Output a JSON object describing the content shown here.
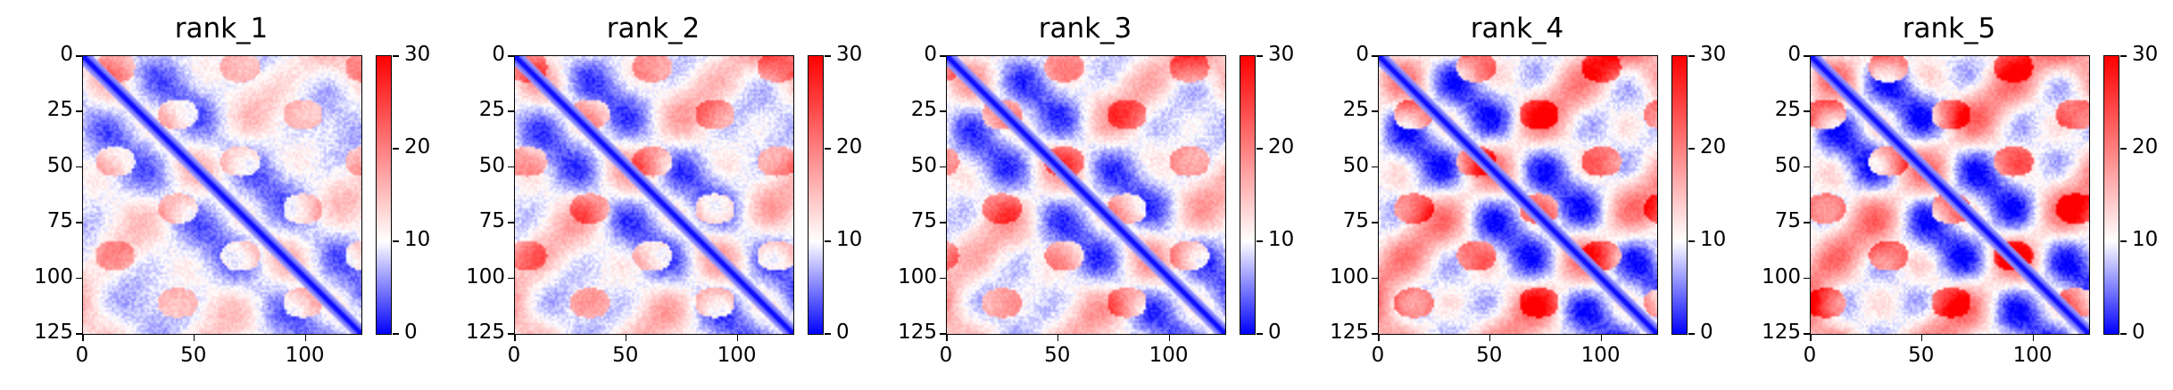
{
  "chart_data": [
    {
      "type": "heatmap",
      "title": "rank_1",
      "xlim": [
        0,
        125
      ],
      "ylim": [
        125,
        0
      ],
      "x_ticks": [
        "0",
        "50",
        "100"
      ],
      "y_ticks": [
        "0",
        "25",
        "50",
        "75",
        "100",
        "125"
      ],
      "colorbar": {
        "min": 0,
        "max": 30,
        "ticks": [
          "0",
          "10",
          "20",
          "30"
        ],
        "colormap": "bwr",
        "center": 10
      },
      "intensity": 0.35
    },
    {
      "type": "heatmap",
      "title": "rank_2",
      "xlim": [
        0,
        125
      ],
      "ylim": [
        125,
        0
      ],
      "x_ticks": [
        "0",
        "50",
        "100"
      ],
      "y_ticks": [
        "0",
        "25",
        "50",
        "75",
        "100",
        "125"
      ],
      "colorbar": {
        "min": 0,
        "max": 30,
        "ticks": [
          "0",
          "10",
          "20",
          "30"
        ],
        "colormap": "bwr",
        "center": 10
      },
      "intensity": 0.5
    },
    {
      "type": "heatmap",
      "title": "rank_3",
      "xlim": [
        0,
        125
      ],
      "ylim": [
        125,
        0
      ],
      "x_ticks": [
        "0",
        "50",
        "100"
      ],
      "y_ticks": [
        "0",
        "25",
        "50",
        "75",
        "100",
        "125"
      ],
      "colorbar": {
        "min": 0,
        "max": 30,
        "ticks": [
          "0",
          "10",
          "20",
          "30"
        ],
        "colormap": "bwr",
        "center": 10
      },
      "intensity": 0.55
    },
    {
      "type": "heatmap",
      "title": "rank_4",
      "xlim": [
        0,
        125
      ],
      "ylim": [
        125,
        0
      ],
      "x_ticks": [
        "0",
        "50",
        "100"
      ],
      "y_ticks": [
        "0",
        "25",
        "50",
        "75",
        "100",
        "125"
      ],
      "colorbar": {
        "min": 0,
        "max": 30,
        "ticks": [
          "0",
          "10",
          "20",
          "30"
        ],
        "colormap": "bwr",
        "center": 10
      },
      "intensity": 0.75
    },
    {
      "type": "heatmap",
      "title": "rank_5",
      "xlim": [
        0,
        125
      ],
      "ylim": [
        125,
        0
      ],
      "x_ticks": [
        "0",
        "50",
        "100"
      ],
      "y_ticks": [
        "0",
        "25",
        "50",
        "75",
        "100",
        "125"
      ],
      "colorbar": {
        "min": 0,
        "max": 30,
        "ticks": [
          "0",
          "10",
          "20",
          "30"
        ],
        "colormap": "bwr",
        "center": 10
      },
      "intensity": 0.8
    }
  ]
}
